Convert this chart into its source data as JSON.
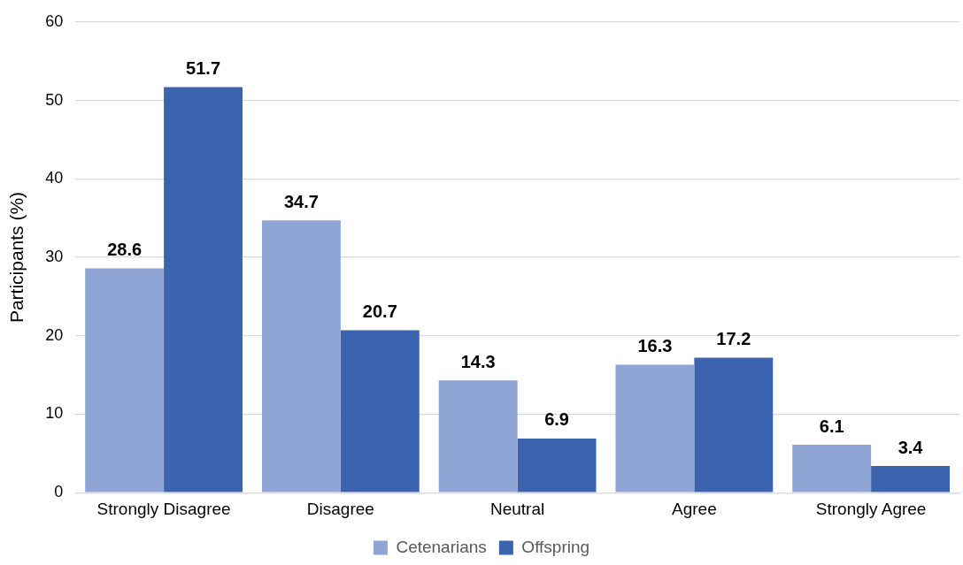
{
  "chart_data": {
    "type": "bar",
    "ylabel": "Participants (%)",
    "categories": [
      "Strongly Disagree",
      "Disagree",
      "Neutral",
      "Agree",
      "Strongly Agree"
    ],
    "series": [
      {
        "name": "Cetenarians",
        "color": "#8fa5d5",
        "values": [
          28.6,
          34.7,
          14.3,
          16.3,
          6.1
        ]
      },
      {
        "name": "Offspring",
        "color": "#3c64ae",
        "values": [
          51.7,
          20.7,
          6.9,
          17.2,
          3.4
        ]
      }
    ],
    "ylim": [
      0,
      60
    ],
    "yticks": [
      0,
      10,
      20,
      30,
      40,
      50,
      60
    ],
    "grid": "y",
    "legend": "bottom",
    "data_labels": true
  }
}
